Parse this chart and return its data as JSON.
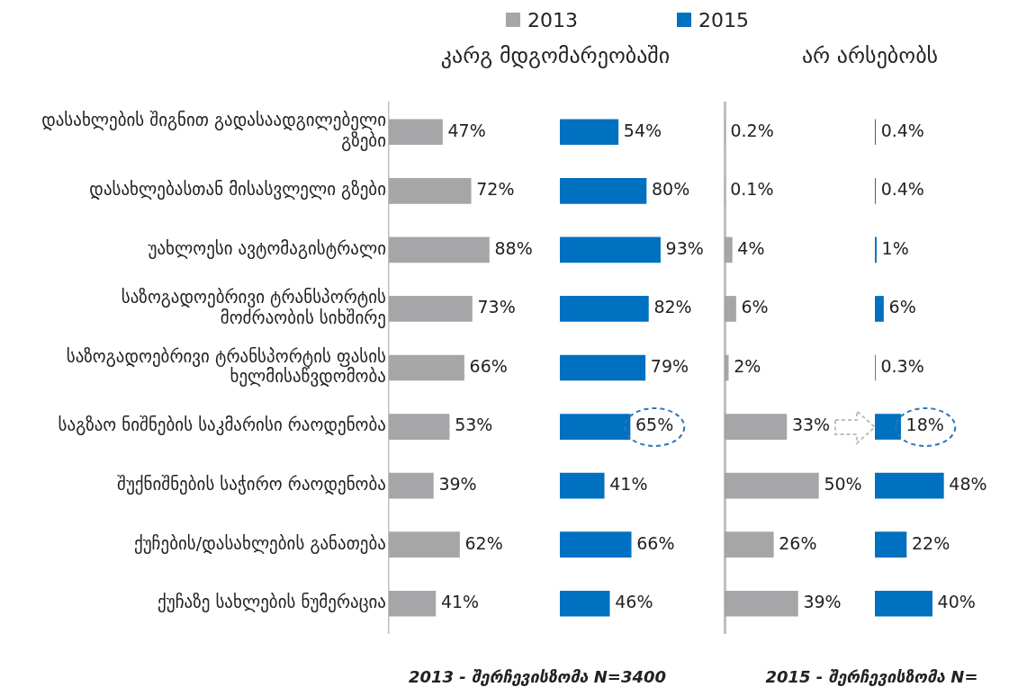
{
  "chart_data": [
    {
      "type": "bar",
      "orientation": "horizontal",
      "title": "კარგ მდგომარეობაში",
      "tick_labels": "y",
      "legend": "top",
      "categories": [
        "დასახლების შიგნით გადასაადგილებელი გზები",
        "დასახლებასთან მისასვლელი გზები",
        "უახლოესი ავტომაგისტრალი",
        "საზოგადოებრივი ტრანსპორტის მოძრაობის სიხშირე",
        "საზოგადოებრივი ტრანსპორტის ფასის ხელმისაწვდომობა",
        "საგზაო ნიშნების საკმარისი რაოდენობა",
        "შუქნიშნების საჭირო რაოდენობა",
        "ქუჩების/დასახლების განათება",
        "ქუჩაზე სახლების ნუმერაცია"
      ],
      "series": [
        {
          "name": "2013",
          "color": "#a6a6a8",
          "values": [
            47,
            72,
            88,
            73,
            66,
            53,
            39,
            62,
            41
          ],
          "value_labels": [
            "47%",
            "72%",
            "88%",
            "73%",
            "66%",
            "53%",
            "39%",
            "62%",
            "41%"
          ]
        }
      ],
      "annotations": [
        "2013 - შერჩევისზომა N=3400"
      ]
    },
    {
      "type": "bar",
      "orientation": "horizontal",
      "tick_labels": false,
      "legend": "top",
      "categories": [
        null,
        null,
        null,
        null,
        null,
        null,
        null,
        null,
        null
      ],
      "series": [
        {
          "name": "2015",
          "color": "#0070c0",
          "values": [
            54,
            80,
            93,
            82,
            79,
            65,
            41,
            66,
            46
          ],
          "value_labels": [
            "54%",
            "80%",
            "93%",
            "82%",
            "79%",
            "65%",
            "41%",
            "66%",
            "46%"
          ]
        }
      ]
    },
    {
      "type": "bar",
      "orientation": "horizontal",
      "title": "არ არსებობს",
      "tick_labels": false,
      "categories": [
        null,
        null,
        null,
        null,
        null,
        null,
        null,
        null,
        null
      ],
      "series": [
        {
          "color": "#a6a6a8",
          "values": [
            0.2,
            0.1,
            4,
            6,
            2,
            33,
            50,
            26,
            39
          ],
          "value_labels": [
            "0.2%",
            "0.1%",
            "4%",
            "6%",
            "2%",
            "33%",
            "50%",
            "26%",
            "39%"
          ]
        }
      ],
      "annotations": [
        "2015 - შერჩევისზომა N="
      ]
    },
    {
      "type": "bar",
      "orientation": "horizontal",
      "tick_labels": false,
      "categories": [
        null,
        null,
        null,
        null,
        null,
        null,
        null,
        null,
        null
      ],
      "series": [
        {
          "color": "#0070c0",
          "values": [
            0.4,
            0.4,
            1,
            6,
            0.3,
            18,
            48,
            22,
            40
          ],
          "value_labels": [
            "0.4%",
            "0.4%",
            "1%",
            "6%",
            "0.3%",
            "18%",
            "48%",
            "22%",
            "40%"
          ]
        }
      ]
    }
  ]
}
